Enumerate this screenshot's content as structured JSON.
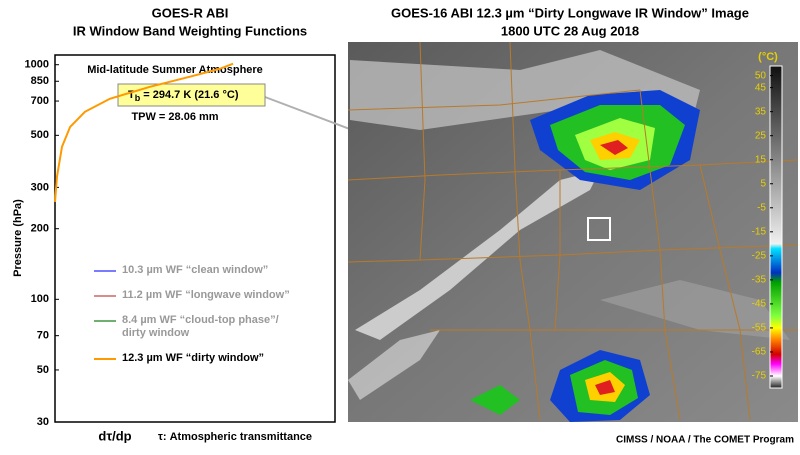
{
  "chart_data": [
    {
      "type": "line",
      "title": "GOES-R ABI",
      "subtitle": "IR Window Band Weighting Functions",
      "annotations": {
        "atmosphere": "Mid-latitude Summer Atmosphere",
        "tb_symbol": "T",
        "tb_subscript": "b",
        "tb_text": " = 294.7 K (21.6 °C)",
        "tpw": "TPW = 28.06 mm"
      },
      "y_label": "Pressure (hPa)",
      "x_label": "dτ/dp",
      "x_note": "τ: Atmospheric transmittance",
      "ylog": true,
      "ylim": [
        30,
        1100
      ],
      "yticks": [
        30,
        50,
        70,
        100,
        200,
        300,
        500,
        700,
        850,
        1000
      ],
      "xlim": [
        0,
        1
      ],
      "series": [
        {
          "name": "10.3 µm WF “clean window”",
          "color": "#7b7bff",
          "x": [],
          "values": []
        },
        {
          "name": "11.2 µm WF “longwave window”",
          "color": "#d98c8c",
          "x": [],
          "values": []
        },
        {
          "name": "8.4 µm WF “cloud-top phase”/\ndirty window",
          "color": "#6fb06f",
          "x": [],
          "values": []
        },
        {
          "name": "12.3 µm WF “dirty window”",
          "color": "#ff9900",
          "x": [
            0,
            0.007,
            0.025,
            0.054,
            0.107,
            0.196,
            0.339,
            0.482,
            0.589,
            0.636
          ],
          "values": [
            260,
            333,
            447,
            543,
            630,
            716,
            805,
            889,
            961,
            1010
          ]
        }
      ]
    },
    {
      "type": "image",
      "title": "GOES-16 ABI 12.3 µm “Dirty Longwave IR Window” Image",
      "subtitle": "1800 UTC  28 Aug 2018",
      "colorbar": {
        "unit": "(°C)",
        "lim": [
          -80,
          54
        ],
        "ticks": [
          50,
          45,
          35,
          25,
          15,
          5,
          -5,
          -15,
          -25,
          -35,
          -45,
          -55,
          -65,
          -75
        ],
        "colormap": [
          [
            54,
            "#101010"
          ],
          [
            -20,
            "#f0f0f0"
          ],
          [
            -22,
            "#00e0ff"
          ],
          [
            -32,
            "#0030c0"
          ],
          [
            -36,
            "#00a000"
          ],
          [
            -50,
            "#80ff40"
          ],
          [
            -55,
            "#ffff00"
          ],
          [
            -60,
            "#ff8000"
          ],
          [
            -66,
            "#d00000"
          ],
          [
            -70,
            "#ff00ff"
          ],
          [
            -75,
            "#ffffff"
          ],
          [
            -80,
            "#202020"
          ]
        ]
      }
    }
  ],
  "credit": "CIMSS / NOAA / The COMET Program"
}
